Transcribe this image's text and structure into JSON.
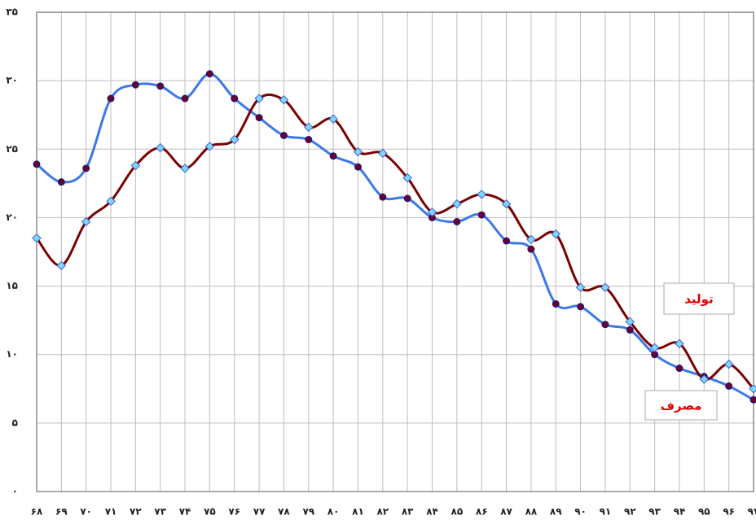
{
  "chart_data": {
    "type": "line",
    "categories": [
      "۶۸",
      "۶۹",
      "۷۰",
      "۷۱",
      "۷۲",
      "۷۳",
      "۷۴",
      "۷۵",
      "۷۶",
      "۷۷",
      "۷۸",
      "۷۹",
      "۸۰",
      "۸۱",
      "۸۲",
      "۸۳",
      "۸۴",
      "۸۵",
      "۸۶",
      "۸۷",
      "۸۸",
      "۸۹",
      "۹۰",
      "۹۱",
      "۹۲",
      "۹۳",
      "۹۴",
      "۹۵",
      "۹۶",
      "۹۷"
    ],
    "series": [
      {
        "name": "مصرف",
        "color": "#3a78e8",
        "marker": "circle",
        "values": [
          23.9,
          22.6,
          23.6,
          28.7,
          29.7,
          29.6,
          28.7,
          30.5,
          28.7,
          27.3,
          26.0,
          25.7,
          24.5,
          23.7,
          21.5,
          21.4,
          20.0,
          19.7,
          20.2,
          18.3,
          17.7,
          13.7,
          13.5,
          12.2,
          11.8,
          10.0,
          9.0,
          8.4,
          7.7,
          6.7
        ]
      },
      {
        "name": "تولید",
        "color": "#7a0000",
        "marker": "diamond",
        "values": [
          18.5,
          16.5,
          19.7,
          21.2,
          23.8,
          25.1,
          23.6,
          25.2,
          25.7,
          28.7,
          28.6,
          26.6,
          27.2,
          24.8,
          24.7,
          22.9,
          20.4,
          21.0,
          21.7,
          21.0,
          18.4,
          18.8,
          14.9,
          14.9,
          12.4,
          10.5,
          10.8,
          8.2,
          9.3,
          7.5
        ]
      }
    ],
    "ylim": [
      0,
      35
    ],
    "yticks": [
      {
        "value": 0,
        "label": "۰"
      },
      {
        "value": 5,
        "label": "۵"
      },
      {
        "value": 10,
        "label": "۱۰"
      },
      {
        "value": 15,
        "label": "۱۵"
      },
      {
        "value": 20,
        "label": "۲۰"
      },
      {
        "value": 25,
        "label": "۲۵"
      },
      {
        "value": 30,
        "label": "۳۰"
      },
      {
        "value": 35,
        "label": "۳۵"
      }
    ],
    "grid": true,
    "legend_position": "right"
  }
}
